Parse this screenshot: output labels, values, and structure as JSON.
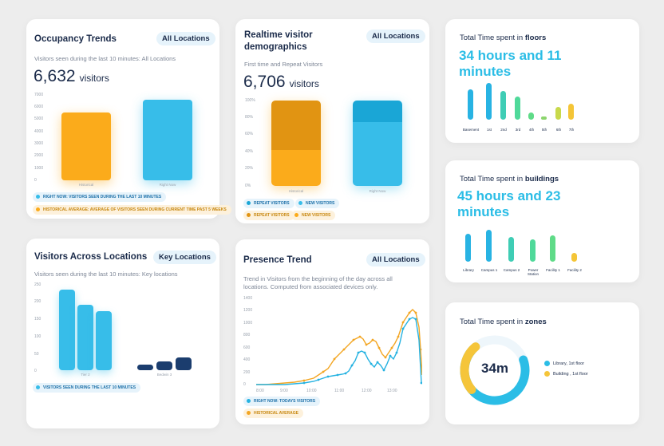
{
  "occupancy": {
    "title": "Occupancy Trends",
    "pill": "All Locations",
    "subtitle": "Visitors seen during the last 10 minutes: All Locations",
    "value": "6,632",
    "unit": "visitors",
    "y_ticks": [
      "7000",
      "6000",
      "5000",
      "4000",
      "3000",
      "2000",
      "1000",
      "0"
    ],
    "bar_labels": [
      "Historical",
      "Right Now"
    ],
    "legend": [
      "RIGHT NOW: VISITORS SEEN DURING THE LAST 10 MINUTES",
      "HISTORICAL AVERAGE: AVERAGE OF VISITORS SEEN DURING CURRENT TIME PAST 5 WEEKS"
    ]
  },
  "demographics": {
    "title": "Realtime visitor demographics",
    "pill": "All Locations",
    "subtitle": "First time and Repeat Visitors",
    "value": "6,706",
    "unit": "visitors",
    "y_ticks": [
      "100%",
      "80%",
      "60%",
      "40%",
      "20%",
      "0%"
    ],
    "bar_labels": [
      "Historical",
      "Right Now"
    ],
    "legend": [
      "REPEAT VISITORS",
      "NEW VISITORS",
      "REPEAT VISITORS",
      "NEW VISITORS"
    ]
  },
  "floors": {
    "title_prefix": "Total Time spent in",
    "title_bold": "floors",
    "value": "34 hours and 11 minutes",
    "labels": [
      "Basement",
      "1st",
      "2nd",
      "3rd",
      "4th",
      "5th",
      "6th",
      "7th"
    ]
  },
  "across": {
    "title": "Visitors Across Locations",
    "pill": "Key Locations",
    "subtitle": "Visitors seen during the last 10 minutes: Key locations",
    "y_ticks": [
      "250",
      "200",
      "150",
      "100",
      "50",
      "0"
    ],
    "group_labels": [
      "Tier 2",
      "Bedwin 3"
    ],
    "legend": [
      "VISITORS SEEN DURING THE LAST 10 MINUTES"
    ]
  },
  "presence": {
    "title": "Presence Trend",
    "pill": "All Locations",
    "subtitle": "Trend in Visitors from the beginning of the day across all locations. Computed from associated devices only.",
    "y_ticks": [
      "1400",
      "1200",
      "1000",
      "800",
      "600",
      "400",
      "200",
      "0"
    ],
    "x_ticks": [
      "8:00",
      "9:00",
      "10:00",
      "11:00",
      "12:00",
      "13:00",
      "14:00",
      "15:00"
    ],
    "legend": [
      "RIGHT NOW: TODAYS VISITORS",
      "HISTORICAL AVERAGE"
    ]
  },
  "buildings": {
    "title_prefix": "Total Time spent in",
    "title_bold": "buildings",
    "value": "45 hours and 23 minutes",
    "labels": [
      "Library",
      "Campus 1",
      "Campus 2",
      "Power Station",
      "Facility 1",
      "Facility 2"
    ]
  },
  "zones": {
    "title_prefix": "Total Time spent in",
    "title_bold": "zones",
    "center": "34m",
    "legend": [
      "Library, 1st floor",
      "Building , 1st floor"
    ]
  }
}
